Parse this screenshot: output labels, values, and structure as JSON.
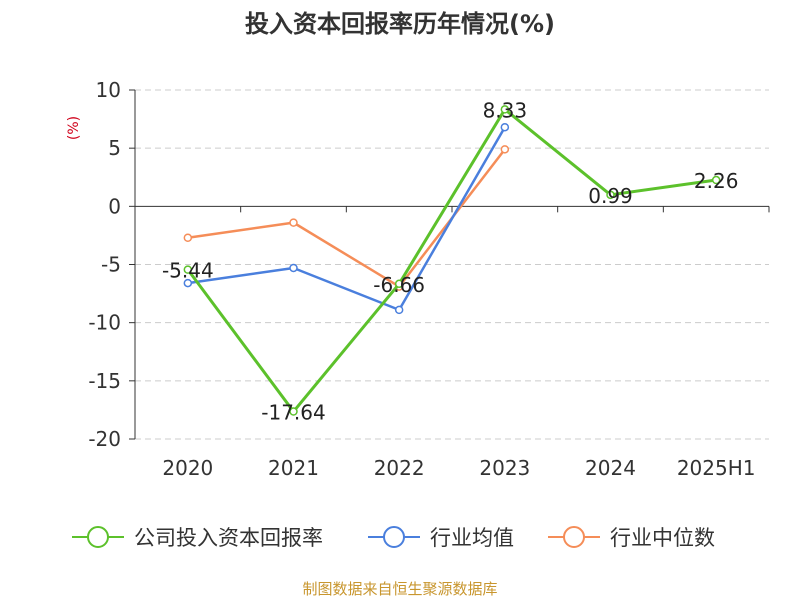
{
  "chart_data": {
    "type": "line",
    "title": "投入资本回报率历年情况(%)",
    "ylabel": "(%)",
    "xlabel": "",
    "categories": [
      "2020",
      "2021",
      "2022",
      "2023",
      "2024",
      "2025H1"
    ],
    "ylim": [
      -20,
      10
    ],
    "yticks": [
      10,
      5,
      0,
      -5,
      -10,
      -15,
      -20
    ],
    "grid": true,
    "legend_position": "bottom",
    "series": [
      {
        "name": "公司投入资本回报率",
        "color": "#5cc12b",
        "values": [
          -5.44,
          -17.64,
          -6.66,
          8.33,
          0.99,
          2.26
        ],
        "labels": [
          "-5.44",
          "-17.64",
          "-6.66",
          "8.33",
          "0.99",
          "2.26"
        ]
      },
      {
        "name": "行业均值",
        "color": "#4a7fdd",
        "values": [
          -6.6,
          -5.3,
          -8.9,
          6.8,
          null,
          null
        ]
      },
      {
        "name": "行业中位数",
        "color": "#f58d58",
        "values": [
          -2.7,
          -1.4,
          -6.9,
          4.9,
          null,
          null
        ]
      }
    ]
  },
  "footer": "制图数据来自恒生聚源数据库"
}
